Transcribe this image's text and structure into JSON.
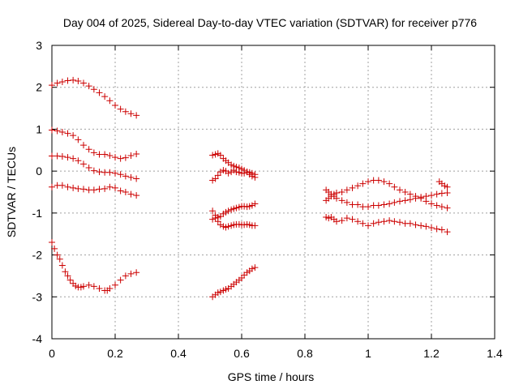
{
  "chart_data": {
    "type": "scatter",
    "title": "Day 004 of 2025, Sidereal Day-to-day VTEC variation (SDTVAR) for receiver p776",
    "xlabel": "GPS time / hours",
    "ylabel": "SDTVAR / TECUs",
    "xlim": [
      0,
      1.4
    ],
    "ylim": [
      -4,
      3
    ],
    "xticks": [
      0,
      0.2,
      0.4,
      0.6,
      0.8,
      1,
      1.2,
      1.4
    ],
    "xtick_labels": [
      "0",
      "0.2",
      "0.4",
      "0.6",
      "0.8",
      "1",
      "1.2",
      "1.4"
    ],
    "yticks": [
      -4,
      -3,
      -2,
      -1,
      0,
      1,
      2,
      3
    ],
    "ytick_labels": [
      "-4",
      "-3",
      "-2",
      "-1",
      "0",
      "1",
      "2",
      "3"
    ],
    "grid": true,
    "marker": "+",
    "color": "#cc0000",
    "series": [
      {
        "name": "s1",
        "x": [
          0,
          0.017,
          0.033,
          0.05,
          0.067,
          0.083,
          0.1,
          0.117,
          0.133,
          0.15,
          0.167,
          0.183,
          0.2,
          0.217,
          0.233,
          0.25,
          0.267
        ],
        "y": [
          2.05,
          2.1,
          2.13,
          2.16,
          2.17,
          2.15,
          2.1,
          2.03,
          1.95,
          1.87,
          1.78,
          1.68,
          1.57,
          1.48,
          1.42,
          1.37,
          1.33
        ]
      },
      {
        "name": "s2",
        "x": [
          0,
          0.017,
          0.033,
          0.05,
          0.067,
          0.083,
          0.1,
          0.117,
          0.133,
          0.15,
          0.167,
          0.183,
          0.2,
          0.217,
          0.233,
          0.25,
          0.267
        ],
        "y": [
          0.98,
          0.96,
          0.93,
          0.9,
          0.85,
          0.75,
          0.62,
          0.52,
          0.44,
          0.4,
          0.4,
          0.37,
          0.33,
          0.3,
          0.32,
          0.37,
          0.41
        ]
      },
      {
        "name": "s3",
        "x": [
          0,
          0.017,
          0.033,
          0.05,
          0.067,
          0.083,
          0.1,
          0.117,
          0.133,
          0.15,
          0.167,
          0.183,
          0.2,
          0.217,
          0.233,
          0.25,
          0.267
        ],
        "y": [
          0.36,
          0.36,
          0.35,
          0.33,
          0.3,
          0.25,
          0.17,
          0.08,
          0.01,
          -0.02,
          -0.03,
          -0.03,
          -0.05,
          -0.08,
          -0.12,
          -0.15,
          -0.18
        ]
      },
      {
        "name": "s4",
        "x": [
          0,
          0.017,
          0.033,
          0.05,
          0.067,
          0.083,
          0.1,
          0.117,
          0.133,
          0.15,
          0.167,
          0.183,
          0.2,
          0.217,
          0.233,
          0.25,
          0.267
        ],
        "y": [
          -0.38,
          -0.34,
          -0.34,
          -0.38,
          -0.4,
          -0.42,
          -0.43,
          -0.45,
          -0.45,
          -0.43,
          -0.42,
          -0.38,
          -0.4,
          -0.47,
          -0.5,
          -0.55,
          -0.58
        ]
      },
      {
        "name": "s5",
        "x": [
          0,
          0.008,
          0.017,
          0.025,
          0.033,
          0.042,
          0.05,
          0.058,
          0.067,
          0.075,
          0.083,
          0.092,
          0.1,
          0.117,
          0.133,
          0.15,
          0.167,
          0.175,
          0.183,
          0.2,
          0.217,
          0.233,
          0.25,
          0.267
        ],
        "y": [
          -1.7,
          -1.85,
          -2.0,
          -2.1,
          -2.25,
          -2.4,
          -2.5,
          -2.6,
          -2.68,
          -2.74,
          -2.77,
          -2.77,
          -2.75,
          -2.72,
          -2.75,
          -2.8,
          -2.85,
          -2.85,
          -2.8,
          -2.72,
          -2.6,
          -2.5,
          -2.45,
          -2.42
        ]
      },
      {
        "name": "s6",
        "x": [
          0.508,
          0.517,
          0.525,
          0.533,
          0.542,
          0.55,
          0.558,
          0.567,
          0.575,
          0.583,
          0.592,
          0.6,
          0.608,
          0.617,
          0.625,
          0.633,
          0.642
        ],
        "y": [
          0.38,
          0.4,
          0.42,
          0.38,
          0.3,
          0.25,
          0.2,
          0.15,
          0.12,
          0.1,
          0.08,
          0.05,
          0.02,
          -0.02,
          -0.08,
          -0.12,
          -0.15
        ]
      },
      {
        "name": "s7",
        "x": [
          0.508,
          0.517,
          0.525,
          0.533,
          0.542,
          0.55,
          0.558,
          0.567,
          0.575,
          0.583,
          0.592,
          0.6,
          0.608,
          0.617,
          0.625,
          0.633,
          0.642
        ],
        "y": [
          -0.22,
          -0.18,
          -0.1,
          -0.02,
          0.02,
          0.0,
          -0.05,
          -0.02,
          0.02,
          -0.02,
          -0.03,
          -0.05,
          -0.05,
          -0.02,
          -0.03,
          -0.05,
          -0.08
        ]
      },
      {
        "name": "s8",
        "x": [
          0.508,
          0.517,
          0.525,
          0.533,
          0.542,
          0.55,
          0.558,
          0.567,
          0.575,
          0.583,
          0.592,
          0.6,
          0.608,
          0.617,
          0.625,
          0.633,
          0.642
        ],
        "y": [
          -0.95,
          -1.05,
          -1.1,
          -1.08,
          -1.02,
          -0.98,
          -0.95,
          -0.92,
          -0.9,
          -0.88,
          -0.86,
          -0.84,
          -0.84,
          -0.85,
          -0.84,
          -0.82,
          -0.78
        ]
      },
      {
        "name": "s9",
        "x": [
          0.508,
          0.517,
          0.525,
          0.533,
          0.542,
          0.55,
          0.558,
          0.567,
          0.575,
          0.583,
          0.592,
          0.6,
          0.608,
          0.617,
          0.625,
          0.633,
          0.642
        ],
        "y": [
          -1.15,
          -1.12,
          -1.2,
          -1.28,
          -1.32,
          -1.34,
          -1.32,
          -1.3,
          -1.28,
          -1.27,
          -1.27,
          -1.28,
          -1.28,
          -1.27,
          -1.28,
          -1.3,
          -1.3
        ]
      },
      {
        "name": "s10",
        "x": [
          0.508,
          0.517,
          0.525,
          0.533,
          0.542,
          0.55,
          0.558,
          0.567,
          0.575,
          0.583,
          0.592,
          0.6,
          0.608,
          0.617,
          0.625,
          0.633,
          0.642
        ],
        "y": [
          -3.0,
          -2.95,
          -2.9,
          -2.88,
          -2.85,
          -2.82,
          -2.8,
          -2.75,
          -2.7,
          -2.65,
          -2.6,
          -2.55,
          -2.48,
          -2.42,
          -2.38,
          -2.33,
          -2.3
        ]
      },
      {
        "name": "s11",
        "x": [
          0.867,
          0.875,
          0.883,
          0.892,
          0.9,
          0.917,
          0.933,
          0.95,
          0.967,
          0.983,
          1.0,
          1.017,
          1.033,
          1.05,
          1.067,
          1.083,
          1.1,
          1.117,
          1.133,
          1.15,
          1.167,
          1.183,
          1.2,
          1.217,
          1.233,
          1.25
        ],
        "y": [
          -0.45,
          -0.5,
          -0.55,
          -0.6,
          -0.65,
          -0.7,
          -0.75,
          -0.8,
          -0.8,
          -0.85,
          -0.85,
          -0.82,
          -0.82,
          -0.8,
          -0.78,
          -0.75,
          -0.72,
          -0.7,
          -0.68,
          -0.65,
          -0.62,
          -0.6,
          -0.58,
          -0.55,
          -0.53,
          -0.52
        ]
      },
      {
        "name": "s12",
        "x": [
          0.867,
          0.875,
          0.883,
          0.892,
          0.9,
          0.917,
          0.933,
          0.95,
          0.967,
          0.983,
          1.0,
          1.017,
          1.033,
          1.05,
          1.067,
          1.083,
          1.1,
          1.117,
          1.133,
          1.15,
          1.167,
          1.183,
          1.2,
          1.217,
          1.233,
          1.25
        ],
        "y": [
          -0.7,
          -0.65,
          -0.6,
          -0.55,
          -0.52,
          -0.5,
          -0.45,
          -0.4,
          -0.35,
          -0.3,
          -0.25,
          -0.22,
          -0.22,
          -0.25,
          -0.3,
          -0.38,
          -0.45,
          -0.5,
          -0.55,
          -0.6,
          -0.65,
          -0.72,
          -0.78,
          -0.82,
          -0.85,
          -0.88
        ]
      },
      {
        "name": "s13",
        "x": [
          0.867,
          0.875,
          0.883,
          0.892,
          0.9,
          0.917,
          0.933,
          0.95,
          0.967,
          0.983,
          1.0,
          1.017,
          1.033,
          1.05,
          1.067,
          1.083,
          1.1,
          1.117,
          1.133,
          1.15,
          1.167,
          1.183,
          1.2,
          1.217,
          1.233,
          1.25
        ],
        "y": [
          -1.1,
          -1.12,
          -1.1,
          -1.15,
          -1.2,
          -1.18,
          -1.12,
          -1.15,
          -1.2,
          -1.25,
          -1.3,
          -1.25,
          -1.22,
          -1.2,
          -1.18,
          -1.2,
          -1.22,
          -1.25,
          -1.25,
          -1.28,
          -1.3,
          -1.32,
          -1.35,
          -1.38,
          -1.4,
          -1.45
        ]
      },
      {
        "name": "s14",
        "x": [
          1.225,
          1.233,
          1.242,
          1.25
        ],
        "y": [
          -0.25,
          -0.3,
          -0.35,
          -0.38
        ]
      }
    ]
  }
}
